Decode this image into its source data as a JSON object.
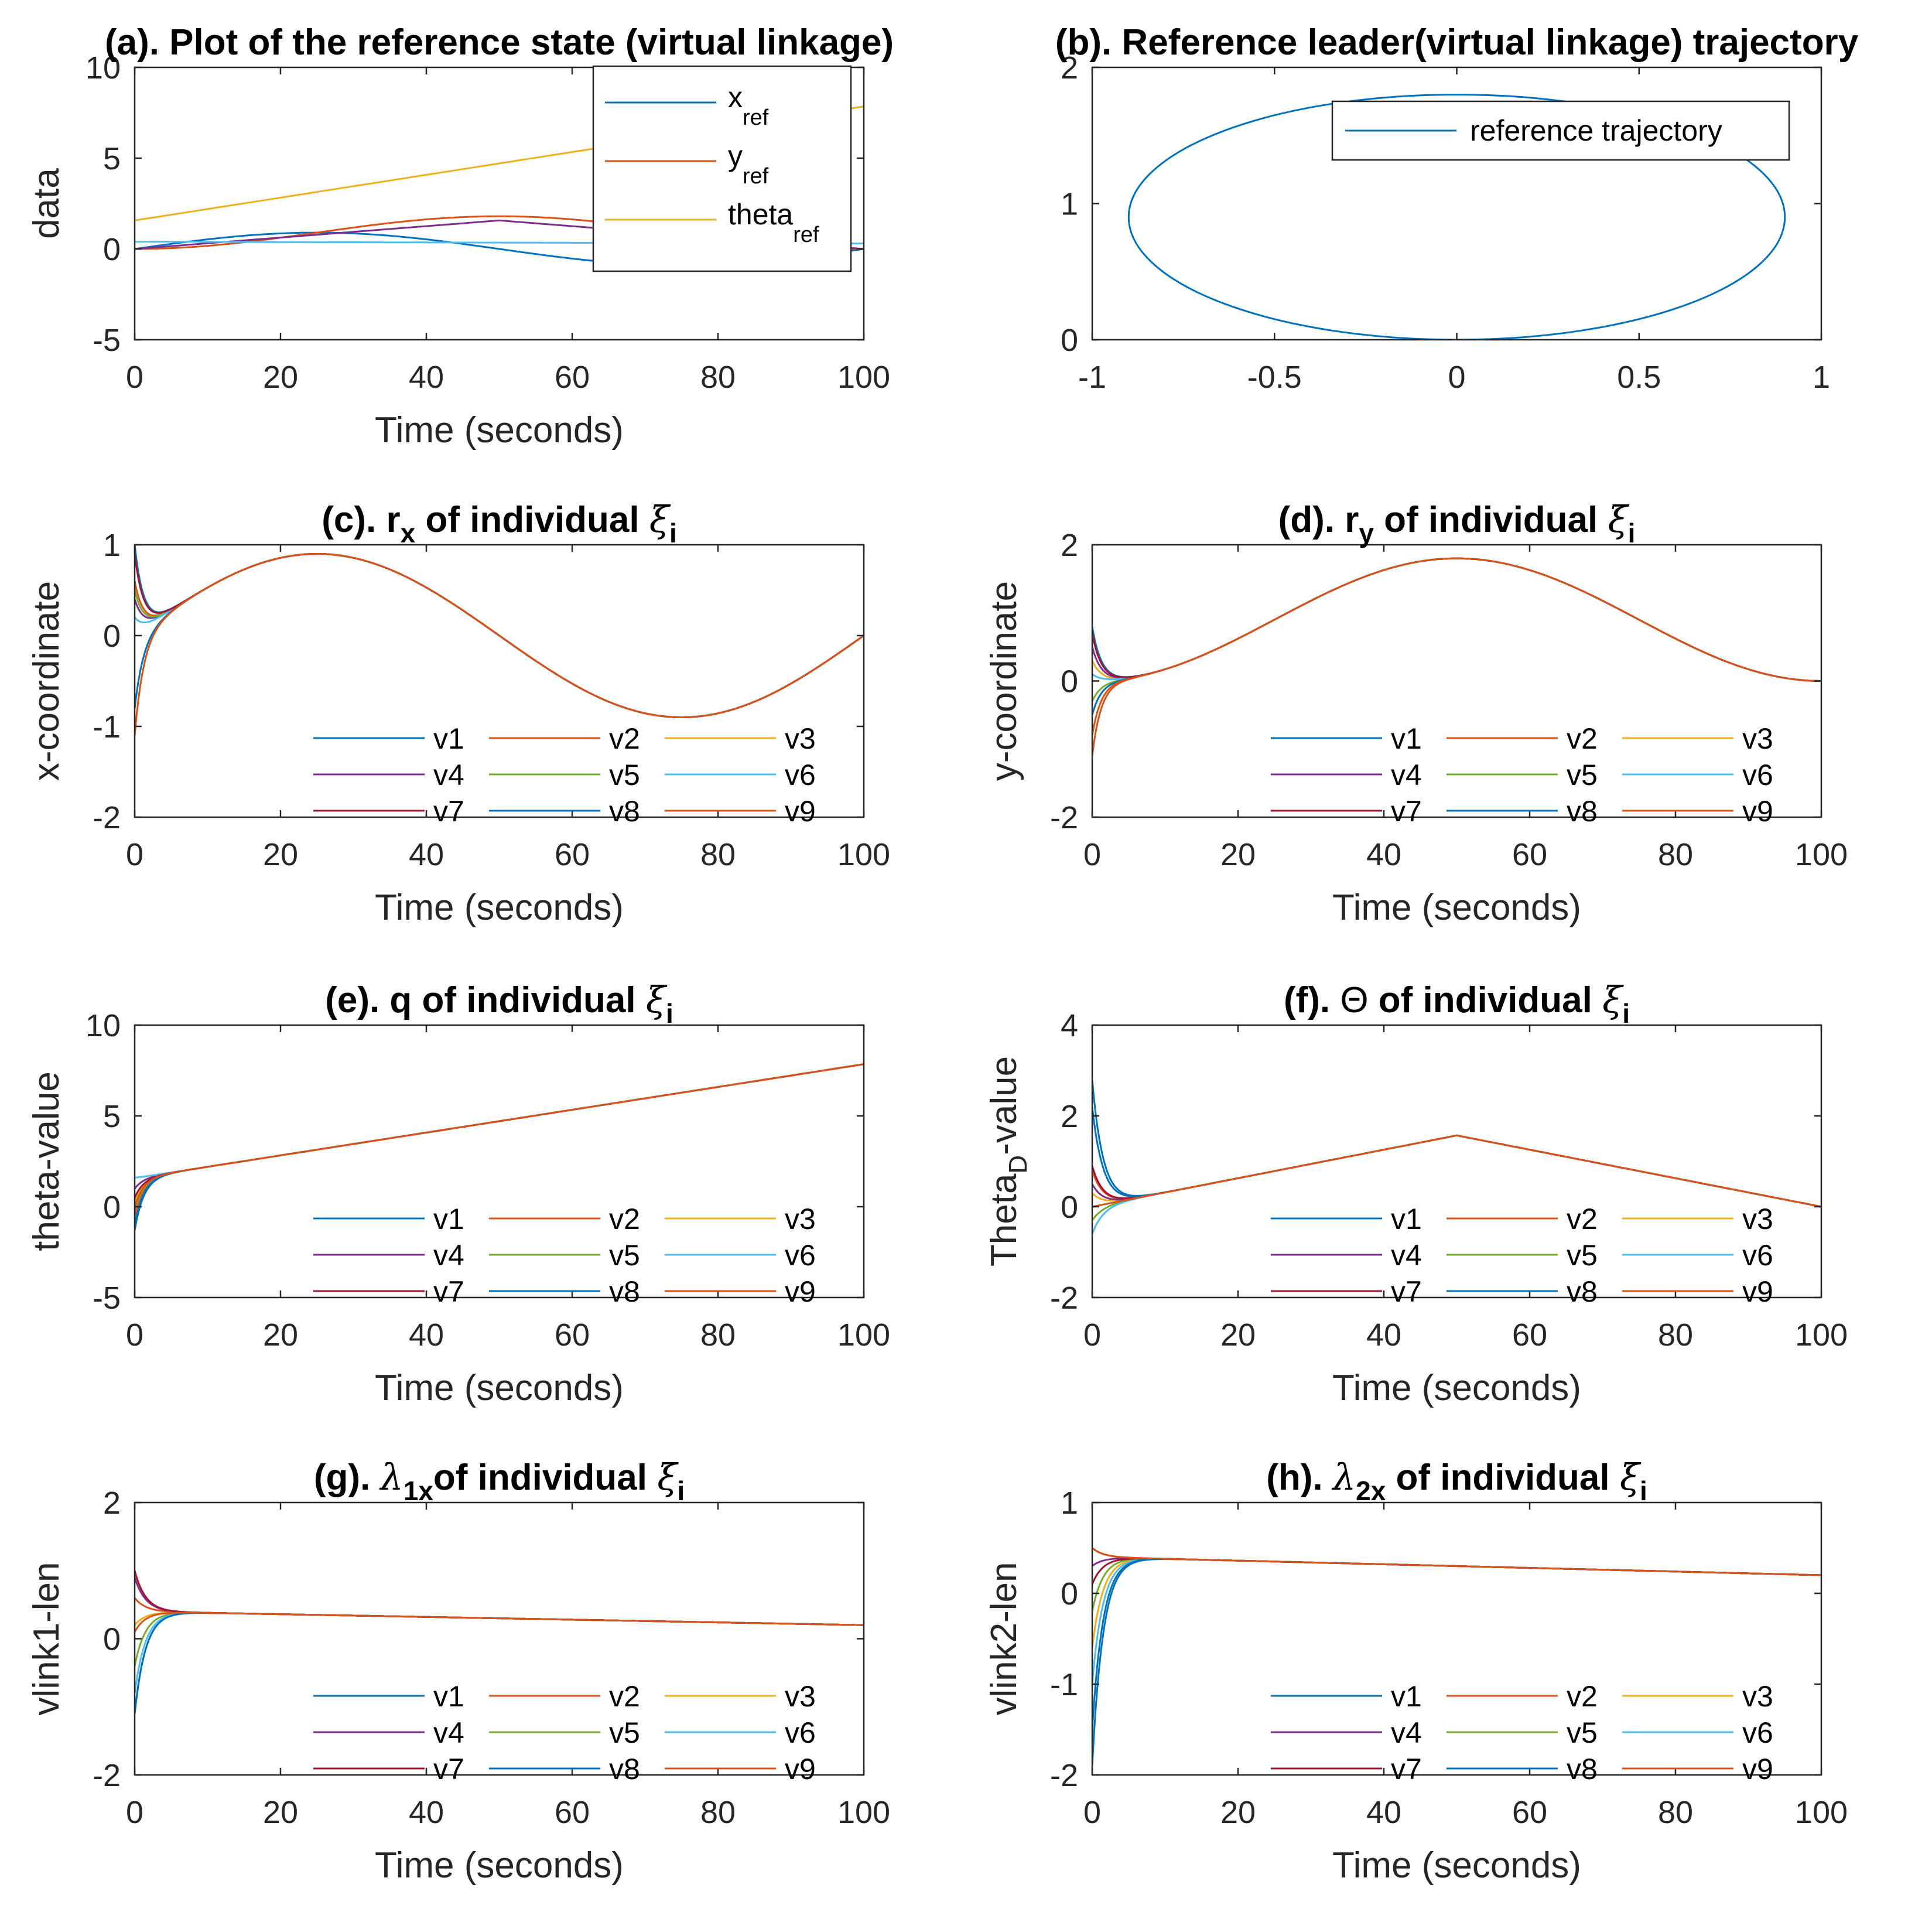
{
  "colors": {
    "v1": "#0072BD",
    "v2": "#D95319",
    "v3": "#EDB120",
    "v4": "#7E2F8E",
    "v5": "#77AC30",
    "v6": "#4DBEEE",
    "v7": "#A2142F",
    "v8": "#0072BD",
    "v9": "#D95319",
    "axis": "#262626"
  },
  "chart_data": [
    {
      "id": "a",
      "type": "line",
      "title": "(a). Plot of the reference state (virtual linkage)",
      "xlabel": "Time (seconds)",
      "ylabel": "data",
      "xlim": [
        0,
        100
      ],
      "ylim": [
        -5,
        10
      ],
      "xticks": [
        "0",
        "20",
        "40",
        "60",
        "80",
        "100"
      ],
      "yticks": [
        "-5",
        "0",
        "5",
        "10"
      ],
      "legend_position": "top-right",
      "series": [
        {
          "name": "x",
          "sub": "ref",
          "color": "#0072BD",
          "x": [
            0,
            12.5,
            25,
            37.5,
            50,
            62.5,
            75,
            87.5,
            100
          ],
          "y": [
            0,
            0.64,
            0.9,
            0.64,
            0,
            -0.64,
            -0.9,
            -0.64,
            0
          ]
        },
        {
          "name": "y",
          "sub": "ref",
          "color": "#D95319",
          "x": [
            0,
            12.5,
            25,
            37.5,
            50,
            62.5,
            75,
            87.5,
            100
          ],
          "y": [
            0,
            0.26,
            0.9,
            1.54,
            1.8,
            1.54,
            0.9,
            0.26,
            0
          ]
        },
        {
          "name": "theta",
          "sub": "ref",
          "color": "#EDB120",
          "x": [
            0,
            100
          ],
          "y": [
            1.57,
            7.85
          ]
        },
        {
          "name": "",
          "sub": "",
          "color": "#7E2F8E",
          "x": [
            0,
            25,
            50,
            75,
            100
          ],
          "y": [
            0,
            0.8,
            1.57,
            0.8,
            0
          ]
        },
        {
          "name": "",
          "sub": "",
          "color": "#4DBEEE",
          "x": [
            0,
            100
          ],
          "y": [
            0.4,
            0.3
          ]
        }
      ]
    },
    {
      "id": "b",
      "type": "line",
      "title": "(b). Reference leader(virtual linkage) trajectory",
      "xlabel": "",
      "ylabel": "",
      "xlim": [
        -1,
        1
      ],
      "ylim": [
        0,
        2
      ],
      "xticks": [
        "-1",
        "-0.5",
        "0",
        "0.5",
        "1"
      ],
      "yticks": [
        "0",
        "1",
        "2"
      ],
      "legend_position": "top-right",
      "series": [
        {
          "name": "reference trajectory",
          "color": "#0072BD",
          "shape": "ellipse",
          "center": [
            0,
            0.9
          ],
          "radius": [
            0.9,
            0.9
          ]
        }
      ]
    },
    {
      "id": "c",
      "type": "line",
      "title_pre": "(c). r",
      "title_sub": "x",
      "title_post": " of individual ",
      "title_greek": "ξ",
      "title_gsub": "i",
      "xlabel": "Time (seconds)",
      "ylabel": "x-coordinate",
      "xlim": [
        0,
        100
      ],
      "ylim": [
        -2,
        1
      ],
      "xticks": [
        "0",
        "20",
        "40",
        "60",
        "80",
        "100"
      ],
      "yticks": [
        "-2",
        "-1",
        "0",
        "1"
      ],
      "legend_position": "bottom-right",
      "legend": [
        "v1",
        "v2",
        "v3",
        "v4",
        "v5",
        "v6",
        "v7",
        "v8",
        "v9"
      ],
      "steady": {
        "kind": "sin",
        "amp": 0.9,
        "period": 100
      },
      "initial": [
        1.0,
        0.6,
        -1.1,
        0.4,
        0.5,
        0.2,
        0.9,
        -0.8,
        -1.1
      ],
      "settle_time": 5
    },
    {
      "id": "d",
      "type": "line",
      "title_pre": "(d). r",
      "title_sub": "y",
      "title_post": " of individual ",
      "title_greek": "ξ",
      "title_gsub": "i",
      "xlabel": "Time (seconds)",
      "ylabel": "y-coordinate",
      "xlim": [
        0,
        100
      ],
      "ylim": [
        -2,
        2
      ],
      "xticks": [
        "0",
        "20",
        "40",
        "60",
        "80",
        "100"
      ],
      "yticks": [
        "-2",
        "0",
        "2"
      ],
      "legend_position": "bottom-right",
      "legend": [
        "v1",
        "v2",
        "v3",
        "v4",
        "v5",
        "v6",
        "v7",
        "v8",
        "v9"
      ],
      "steady": {
        "kind": "cosbump",
        "amp": 1.8,
        "period": 100
      },
      "initial": [
        0.8,
        -1.1,
        0.3,
        0.5,
        -0.3,
        0.1,
        0.7,
        -0.5,
        -0.8
      ],
      "settle_time": 5
    },
    {
      "id": "e",
      "type": "line",
      "title_pre": "(e). q of individual ",
      "title_sub": "",
      "title_post": "",
      "title_greek": "ξ",
      "title_gsub": "i",
      "xlabel": "Time (seconds)",
      "ylabel": "theta-value",
      "xlim": [
        0,
        100
      ],
      "ylim": [
        -5,
        10
      ],
      "xticks": [
        "0",
        "20",
        "40",
        "60",
        "80",
        "100"
      ],
      "yticks": [
        "-5",
        "0",
        "5",
        "10"
      ],
      "legend_position": "bottom-right",
      "legend": [
        "v1",
        "v2",
        "v3",
        "v4",
        "v5",
        "v6",
        "v7",
        "v8",
        "v9"
      ],
      "steady": {
        "kind": "linear",
        "start": 1.57,
        "end": 7.85
      },
      "initial": [
        -1.3,
        -0.5,
        0.3,
        1.0,
        -0.2,
        1.6,
        0.5,
        -1.0,
        0.0
      ],
      "settle_time": 5
    },
    {
      "id": "f",
      "type": "line",
      "title_pre": "(f). ",
      "title_sym": "Θ",
      "title_post": " of individual ",
      "title_greek": "ξ",
      "title_gsub": "i",
      "xlabel": "Time (seconds)",
      "ylabel_pre": "Theta",
      "ylabel_sub": "D",
      "ylabel_post": "-value",
      "xlim": [
        0,
        100
      ],
      "ylim": [
        -2,
        4
      ],
      "xticks": [
        "0",
        "20",
        "40",
        "60",
        "80",
        "100"
      ],
      "yticks": [
        "-2",
        "0",
        "2",
        "4"
      ],
      "legend_position": "bottom-right",
      "legend": [
        "v1",
        "v2",
        "v3",
        "v4",
        "v5",
        "v6",
        "v7",
        "v8",
        "v9"
      ],
      "steady": {
        "kind": "triangle",
        "peak": 1.57,
        "peak_x": 50
      },
      "initial": [
        2.8,
        0.8,
        0.3,
        0.5,
        -0.3,
        -0.6,
        0.9,
        2.2,
        0.0
      ],
      "settle_time": 6
    },
    {
      "id": "g",
      "type": "line",
      "title_pre": "(g). ",
      "title_lambda": "λ",
      "title_sub": "1x",
      "title_post": "of individual ",
      "title_greek": "ξ",
      "title_gsub": "i",
      "xlabel": "Time (seconds)",
      "ylabel": "vlink1-len",
      "xlim": [
        0,
        100
      ],
      "ylim": [
        -2,
        2
      ],
      "xticks": [
        "0",
        "20",
        "40",
        "60",
        "80",
        "100"
      ],
      "yticks": [
        "-2",
        "0",
        "2"
      ],
      "legend_position": "bottom-right",
      "legend": [
        "v1",
        "v2",
        "v3",
        "v4",
        "v5",
        "v6",
        "v7",
        "v8",
        "v9"
      ],
      "steady": {
        "kind": "linear",
        "start": 0.4,
        "end": 0.2
      },
      "initial": [
        -1.1,
        0.6,
        0.2,
        0.9,
        -0.4,
        -0.8,
        1.0,
        -1.1,
        0.1
      ],
      "settle_time": 6
    },
    {
      "id": "h",
      "type": "line",
      "title_pre": "(h). ",
      "title_lambda": "λ",
      "title_sub": "2x",
      "title_post": " of individual ",
      "title_greek": "ξ",
      "title_gsub": "i",
      "xlabel": "Time (seconds)",
      "ylabel": "vlink2-len",
      "xlim": [
        0,
        100
      ],
      "ylim": [
        -2,
        1
      ],
      "xticks": [
        "0",
        "20",
        "40",
        "60",
        "80",
        "100"
      ],
      "yticks": [
        "-2",
        "-1",
        "0",
        "1"
      ],
      "legend_position": "bottom-right",
      "legend": [
        "v1",
        "v2",
        "v3",
        "v4",
        "v5",
        "v6",
        "v7",
        "v8",
        "v9"
      ],
      "steady": {
        "kind": "linear",
        "start": 0.4,
        "end": 0.2
      },
      "initial": [
        -1.9,
        0.5,
        -0.6,
        0.3,
        -0.2,
        -1.0,
        0.1,
        -1.5,
        0.5
      ],
      "settle_time": 6
    }
  ]
}
